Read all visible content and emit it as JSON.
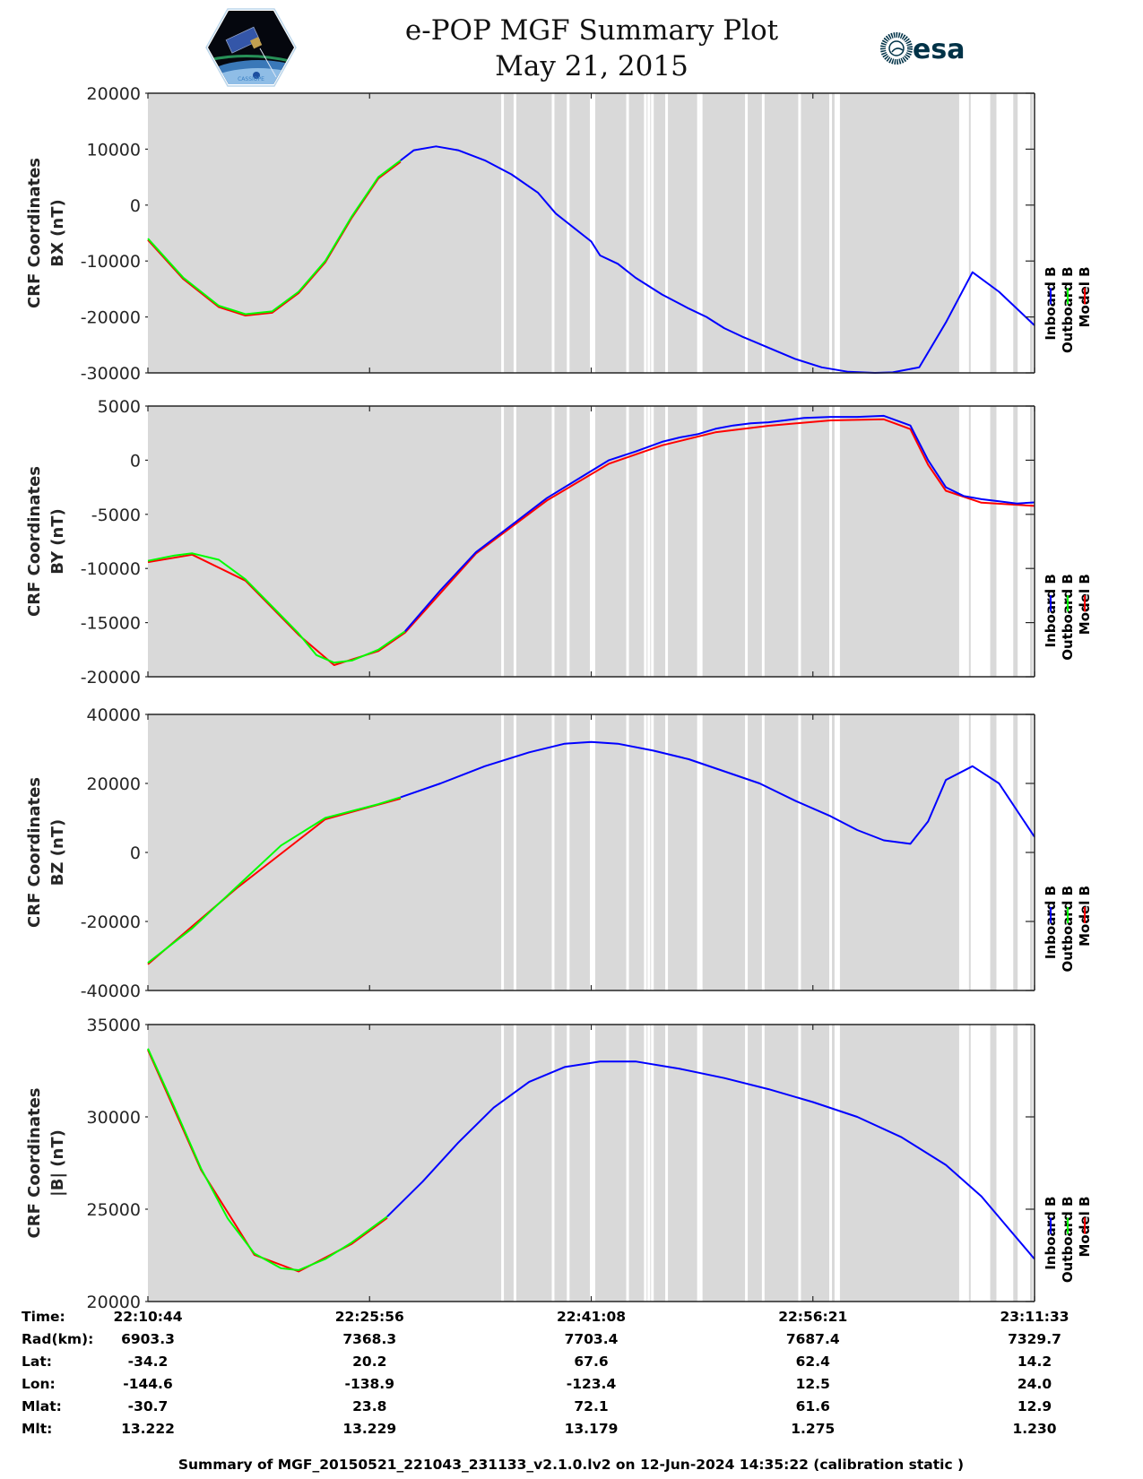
{
  "header": {
    "title": "e-POP MGF Summary Plot",
    "date": "May 21, 2015",
    "left_logo": "cassiope-mission-logo",
    "left_logo_text": "CASSIOPE",
    "right_logo": "esa-logo",
    "right_logo_text": "esa"
  },
  "colors": {
    "inboard": "#0000ff",
    "outboard": "#00ff00",
    "model": "#ff0000",
    "data_gap_fill": "#d9d9d9",
    "axis": "#262626",
    "esa_brand": "#003247"
  },
  "legend": {
    "entries": [
      {
        "label": "Inboard B",
        "color": "#0000ff"
      },
      {
        "label": "Outboard B",
        "color": "#00ff00"
      },
      {
        "label": "Model B",
        "color": "#ff0000"
      }
    ],
    "placement": "right, rotated vertical"
  },
  "chart_data": [
    {
      "type": "line",
      "title": "",
      "ylabel_line1": "CRF Coordinates",
      "ylabel_line2": "BX (nT)",
      "ylim": [
        -30000,
        20000
      ],
      "yticks": [
        -30000,
        -20000,
        -10000,
        0,
        10000,
        20000
      ],
      "xlim": [
        0,
        1
      ],
      "x_tick_labels": [
        "22:10:44",
        "22:25:56",
        "22:41:08",
        "22:56:21",
        "23:11:33"
      ],
      "series": [
        {
          "name": "Outboard B",
          "x": [
            0,
            0.04,
            0.08,
            0.11,
            0.14,
            0.17,
            0.2,
            0.23,
            0.26,
            0.285
          ],
          "values": [
            -6000,
            -13000,
            -18000,
            -19500,
            -19000,
            -15500,
            -10000,
            -2000,
            5000,
            8000
          ]
        },
        {
          "name": "Inboard B",
          "x": [
            0.285,
            0.3,
            0.325,
            0.35,
            0.38,
            0.41,
            0.44,
            0.46,
            0.48,
            0.5,
            0.51,
            0.53,
            0.55,
            0.58,
            0.61,
            0.63,
            0.65,
            0.67,
            0.7,
            0.73,
            0.76,
            0.79,
            0.82,
            0.84,
            0.87,
            0.9,
            0.93,
            0.96,
            1.0
          ],
          "values": [
            8000,
            9800,
            10500,
            9800,
            8000,
            5500,
            2200,
            -1500,
            -4000,
            -6500,
            -9000,
            -10500,
            -13000,
            -16000,
            -18500,
            -20000,
            -22000,
            -23500,
            -25500,
            -27500,
            -29000,
            -29800,
            -30000,
            -29900,
            -29000,
            -21000,
            -12000,
            -15500,
            -21500
          ]
        },
        {
          "name": "Model B",
          "x": [
            0,
            0.04,
            0.08,
            0.11,
            0.14,
            0.17,
            0.2,
            0.23,
            0.26,
            0.285
          ],
          "values": [
            -6000,
            -13000,
            -18000,
            -19500,
            -19000,
            -15500,
            -10000,
            -2000,
            5000,
            8000
          ]
        }
      ]
    },
    {
      "type": "line",
      "ylabel_line1": "CRF Coordinates",
      "ylabel_line2": "BY (nT)",
      "ylim": [
        -20000,
        5000
      ],
      "yticks": [
        -20000,
        -15000,
        -10000,
        -5000,
        0,
        5000
      ],
      "xlim": [
        0,
        1
      ],
      "x_tick_labels": [
        "22:10:44",
        "22:25:56",
        "22:41:08",
        "22:56:21",
        "23:11:33"
      ],
      "series": [
        {
          "name": "Outboard B",
          "x": [
            0,
            0.03,
            0.05,
            0.08,
            0.11,
            0.14,
            0.17,
            0.19,
            0.21,
            0.23,
            0.26,
            0.29
          ],
          "values": [
            -9300,
            -8800,
            -8600,
            -9200,
            -11000,
            -13500,
            -16000,
            -18000,
            -18700,
            -18500,
            -17500,
            -15800
          ]
        },
        {
          "name": "Inboard B",
          "x": [
            0.29,
            0.33,
            0.37,
            0.41,
            0.45,
            0.49,
            0.52,
            0.55,
            0.58,
            0.6,
            0.62,
            0.64,
            0.66,
            0.68,
            0.7,
            0.72,
            0.74,
            0.77,
            0.8,
            0.83,
            0.86,
            0.88,
            0.9,
            0.92,
            0.94,
            0.96,
            0.98,
            1.0
          ],
          "values": [
            -15800,
            -12000,
            -8500,
            -6000,
            -3500,
            -1500,
            0,
            800,
            1700,
            2100,
            2400,
            2900,
            3200,
            3400,
            3500,
            3700,
            3900,
            4000,
            4000,
            4100,
            3200,
            0,
            -2500,
            -3300,
            -3600,
            -3800,
            -4000,
            -3900
          ]
        },
        {
          "name": "Model B",
          "x": [
            0,
            0.05,
            0.11,
            0.17,
            0.21,
            0.26,
            0.29,
            0.37,
            0.45,
            0.52,
            0.58,
            0.64,
            0.7,
            0.77,
            0.83,
            0.86,
            0.88,
            0.9,
            0.94,
            1.0
          ],
          "values": [
            -9300,
            -8600,
            -11000,
            -16000,
            -18800,
            -17500,
            -15800,
            -8500,
            -3600,
            -200,
            1500,
            2700,
            3300,
            3800,
            3900,
            3000,
            -300,
            -2700,
            -3800,
            -4100
          ]
        }
      ]
    },
    {
      "type": "line",
      "ylabel_line1": "CRF Coordinates",
      "ylabel_line2": "BZ (nT)",
      "ylim": [
        -40000,
        40000
      ],
      "yticks": [
        -40000,
        -20000,
        0,
        20000,
        40000
      ],
      "xlim": [
        0,
        1
      ],
      "x_tick_labels": [
        "22:10:44",
        "22:25:56",
        "22:41:08",
        "22:56:21",
        "23:11:33"
      ],
      "series": [
        {
          "name": "Outboard B",
          "x": [
            0,
            0.05,
            0.1,
            0.15,
            0.2,
            0.26,
            0.285
          ],
          "values": [
            -32000,
            -22000,
            -10000,
            2000,
            10000,
            14000,
            16000
          ]
        },
        {
          "name": "Inboard B",
          "x": [
            0.285,
            0.33,
            0.38,
            0.43,
            0.47,
            0.5,
            0.53,
            0.57,
            0.61,
            0.65,
            0.69,
            0.73,
            0.77,
            0.8,
            0.83,
            0.86,
            0.88,
            0.9,
            0.93,
            0.96,
            1.0
          ],
          "values": [
            16000,
            20000,
            25000,
            29000,
            31500,
            32000,
            31500,
            29500,
            27000,
            23500,
            20000,
            15000,
            10500,
            6500,
            3500,
            2500,
            9000,
            21000,
            25000,
            20000,
            4500
          ]
        },
        {
          "name": "Model B",
          "x": [
            0,
            0.1,
            0.2,
            0.285
          ],
          "values": [
            -32000,
            -10000,
            10000,
            16000
          ]
        }
      ]
    },
    {
      "type": "line",
      "ylabel_line1": "CRF Coordinates",
      "ylabel_line2": "|B| (nT)",
      "ylim": [
        20000,
        35000
      ],
      "yticks": [
        20000,
        25000,
        30000,
        35000
      ],
      "xlim": [
        0,
        1
      ],
      "x_tick_labels": [
        "22:10:44",
        "22:25:56",
        "22:41:08",
        "22:56:21",
        "23:11:33"
      ],
      "series": [
        {
          "name": "Outboard B",
          "x": [
            0,
            0.03,
            0.06,
            0.09,
            0.12,
            0.15,
            0.17,
            0.2,
            0.23,
            0.27
          ],
          "values": [
            33700,
            30500,
            27200,
            24500,
            22600,
            21800,
            21700,
            22300,
            23200,
            24600
          ]
        },
        {
          "name": "Inboard B",
          "x": [
            0.27,
            0.31,
            0.35,
            0.39,
            0.43,
            0.47,
            0.51,
            0.55,
            0.6,
            0.65,
            0.7,
            0.75,
            0.8,
            0.85,
            0.9,
            0.94,
            0.97,
            1.0
          ],
          "values": [
            24600,
            26500,
            28600,
            30500,
            31900,
            32700,
            33000,
            33000,
            32600,
            32100,
            31500,
            30800,
            30000,
            28900,
            27400,
            25700,
            24000,
            22300
          ]
        },
        {
          "name": "Model B",
          "x": [
            0,
            0.06,
            0.12,
            0.17,
            0.23,
            0.27
          ],
          "values": [
            33700,
            27200,
            22600,
            21700,
            23200,
            24600
          ]
        }
      ]
    }
  ],
  "data_gaps": {
    "description": "white vertical stripes where data is missing (normalized x)",
    "white_stripes": [
      0.4,
      0.414,
      0.457,
      0.474,
      0.5,
      0.503,
      0.541,
      0.561,
      0.565,
      0.569,
      0.585,
      0.621,
      0.624,
      0.675,
      0.694,
      0.735,
      0.77,
      0.776,
      0.779
    ],
    "gray_bands_in_white_region": [
      [
        0.785,
        0.793
      ],
      [
        0.797,
        0.8
      ],
      [
        0.804,
        0.891
      ],
      [
        0.894,
        0.901
      ],
      [
        0.906,
        0.92
      ],
      [
        0.926,
        0.928
      ],
      [
        0.95,
        0.957
      ],
      [
        0.976,
        0.981
      ],
      [
        0.995,
        0.998
      ]
    ],
    "white_region_start": 0.915
  },
  "info_table": {
    "row_labels": [
      "Time:",
      "Rad(km):",
      "Lat:",
      "Lon:",
      "Mlat:",
      "Mlt:"
    ],
    "columns": [
      [
        "22:10:44",
        "6903.3",
        "-34.2",
        "-144.6",
        "-30.7",
        "13.222"
      ],
      [
        "22:25:56",
        "7368.3",
        "20.2",
        "-138.9",
        "23.8",
        "13.229"
      ],
      [
        "22:41:08",
        "7703.4",
        "67.6",
        "-123.4",
        "72.1",
        "13.179"
      ],
      [
        "22:56:21",
        "7687.4",
        "62.4",
        "12.5",
        "61.6",
        "1.275"
      ],
      [
        "23:11:33",
        "7329.7",
        "14.2",
        "24.0",
        "12.9",
        "1.230"
      ]
    ]
  },
  "footer": {
    "text": "Summary of MGF_20150521_221043_231133_v2.1.0.lv2 on 12-Jun-2024 14:35:22 (calibration static )"
  }
}
